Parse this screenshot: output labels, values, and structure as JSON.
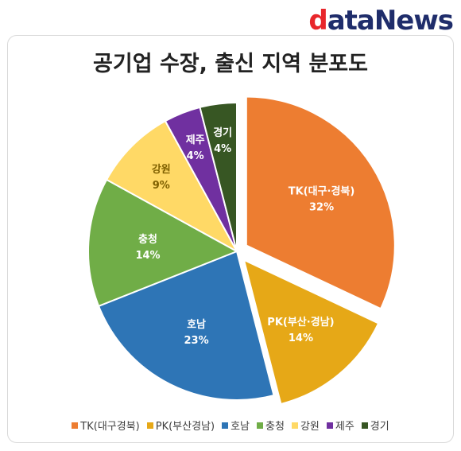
{
  "logo": {
    "first": "d",
    "rest": "ataNews"
  },
  "chart_data": {
    "type": "pie",
    "title": "공기업 수장, 출신 지역 분포도",
    "slices": [
      {
        "label": "TK(대구·경북)",
        "legend": "TK(대구경북)",
        "value": 32,
        "pct": "32%",
        "color": "#ed7d31",
        "exploded": true
      },
      {
        "label": "PK(부산·경남)",
        "legend": "PK(부산경남)",
        "value": 14,
        "pct": "14%",
        "color": "#e6a817",
        "exploded": true
      },
      {
        "label": "호남",
        "legend": "호남",
        "value": 23,
        "pct": "23%",
        "color": "#2e75b6",
        "exploded": false
      },
      {
        "label": "충청",
        "legend": "충청",
        "value": 14,
        "pct": "14%",
        "color": "#70ad47",
        "exploded": false
      },
      {
        "label": "강원",
        "legend": "강원",
        "value": 9,
        "pct": "9%",
        "color": "#ffd966",
        "exploded": false
      },
      {
        "label": "제주",
        "legend": "제주",
        "value": 4,
        "pct": "4%",
        "color": "#7030a0",
        "exploded": false
      },
      {
        "label": "경기",
        "legend": "경기",
        "value": 4,
        "pct": "4%",
        "color": "#375623",
        "exploded": false
      }
    ],
    "legend_position": "bottom"
  }
}
